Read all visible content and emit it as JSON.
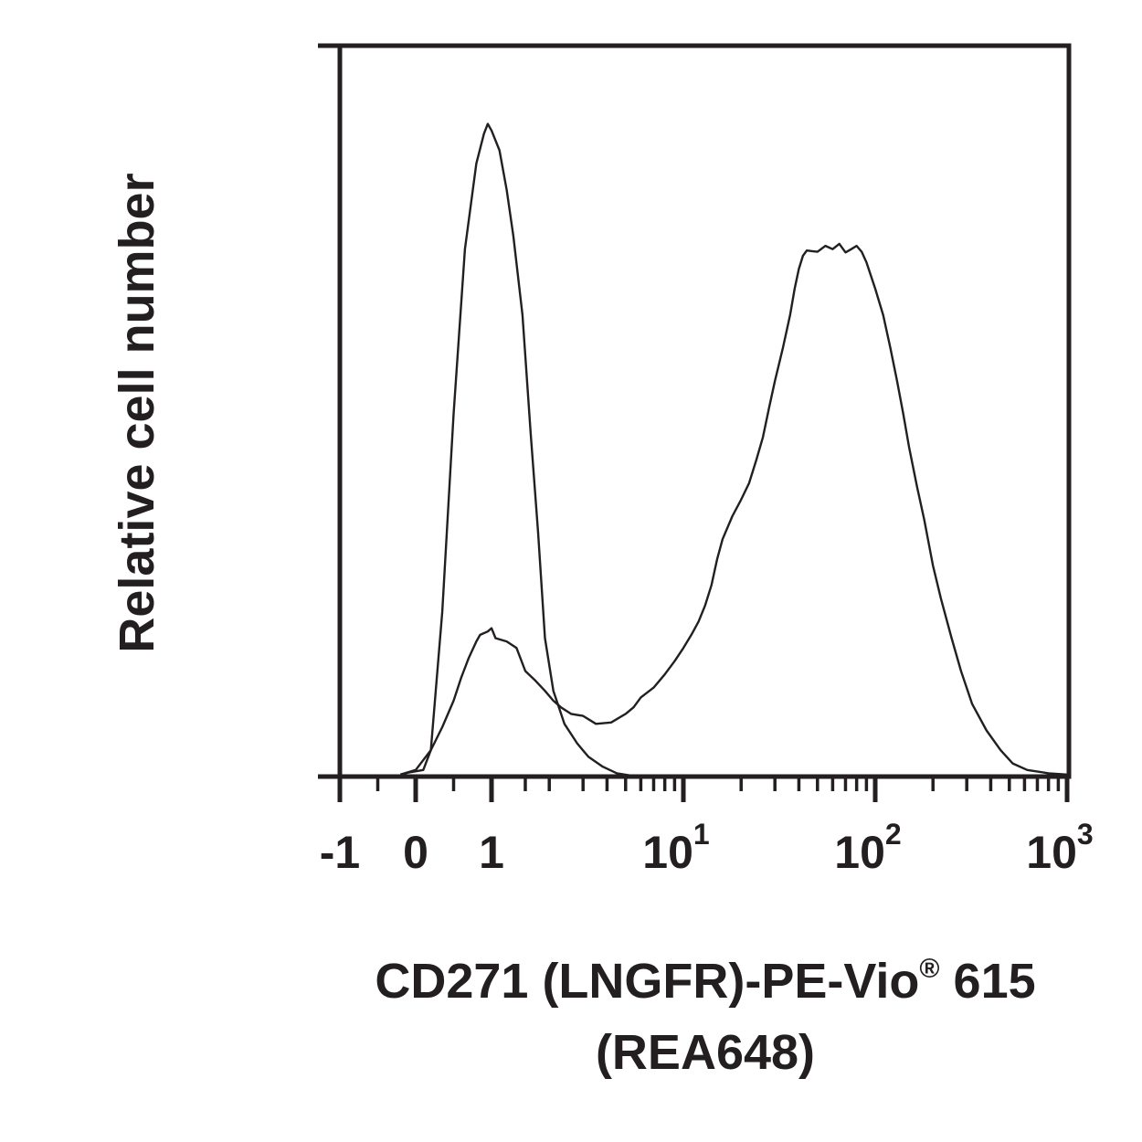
{
  "chart_data": {
    "type": "line",
    "xlabel_line1": "CD271 (LNGFR)-PE-Vio",
    "xlabel_reg": "®",
    "xlabel_line1_end": " 615",
    "xlabel_line2": "(REA648)",
    "ylabel": "Relative cell number",
    "x_scale": "biexponential",
    "xlim": [
      -1,
      1000
    ],
    "ylim": [
      0,
      100
    ],
    "grid": false,
    "x_ticks": [
      {
        "value": -1,
        "base": "-1",
        "exp": ""
      },
      {
        "value": 0,
        "base": "0",
        "exp": ""
      },
      {
        "value": 1,
        "base": "1",
        "exp": ""
      },
      {
        "value": 10,
        "base": "10",
        "exp": "1"
      },
      {
        "value": 100,
        "base": "10",
        "exp": "2"
      },
      {
        "value": 1000,
        "base": "10",
        "exp": "3"
      }
    ],
    "series": [
      {
        "points": [
          [
            -0.2,
            0.3
          ],
          [
            -0.1,
            0.6
          ],
          [
            0.1,
            1.0
          ],
          [
            0.2,
            4.0
          ],
          [
            0.35,
            25
          ],
          [
            0.5,
            55
          ],
          [
            0.65,
            80
          ],
          [
            0.8,
            93
          ],
          [
            0.9,
            97.5
          ],
          [
            0.95,
            99
          ],
          [
            1.0,
            98
          ],
          [
            1.1,
            95
          ],
          [
            1.2,
            89
          ],
          [
            1.3,
            82
          ],
          [
            1.45,
            70
          ],
          [
            1.6,
            52
          ],
          [
            1.75,
            37
          ],
          [
            1.9,
            21
          ],
          [
            2.1,
            13
          ],
          [
            2.4,
            8
          ],
          [
            2.8,
            5
          ],
          [
            3.2,
            3
          ],
          [
            3.8,
            1.5
          ],
          [
            4.5,
            0.5
          ],
          [
            5.2,
            0.2
          ]
        ]
      },
      {
        "points": [
          [
            -0.2,
            0.3
          ],
          [
            0.0,
            1.0
          ],
          [
            0.2,
            4.0
          ],
          [
            0.35,
            7.5
          ],
          [
            0.5,
            11.5
          ],
          [
            0.6,
            15
          ],
          [
            0.7,
            18
          ],
          [
            0.8,
            20.5
          ],
          [
            0.85,
            21.5
          ],
          [
            0.95,
            22
          ],
          [
            1.0,
            22.5
          ],
          [
            1.05,
            21
          ],
          [
            1.2,
            20.5
          ],
          [
            1.35,
            19.5
          ],
          [
            1.5,
            16
          ],
          [
            1.7,
            14.5
          ],
          [
            1.9,
            13
          ],
          [
            2.1,
            11.5
          ],
          [
            2.3,
            10.5
          ],
          [
            2.6,
            9.5
          ],
          [
            3.0,
            9.2
          ],
          [
            3.5,
            8.0
          ],
          [
            4.2,
            8.2
          ],
          [
            5.0,
            9.5
          ],
          [
            5.5,
            10.5
          ],
          [
            6.0,
            12
          ],
          [
            7.0,
            13.5
          ],
          [
            8.0,
            15.5
          ],
          [
            9.0,
            17.5
          ],
          [
            10,
            19.5
          ],
          [
            11,
            21.5
          ],
          [
            12,
            23.5
          ],
          [
            13,
            26
          ],
          [
            14,
            29
          ],
          [
            15,
            33
          ],
          [
            16,
            36
          ],
          [
            18,
            39.5
          ],
          [
            20,
            42
          ],
          [
            22,
            44.5
          ],
          [
            24,
            48
          ],
          [
            26,
            51.5
          ],
          [
            28,
            56
          ],
          [
            30,
            60
          ],
          [
            33,
            65
          ],
          [
            36,
            70
          ],
          [
            38,
            74
          ],
          [
            40,
            77
          ],
          [
            42,
            79
          ],
          [
            44,
            79.8
          ],
          [
            50,
            79.6
          ],
          [
            55,
            80.5
          ],
          [
            60,
            80
          ],
          [
            65,
            80.8
          ],
          [
            70,
            79.5
          ],
          [
            75,
            80
          ],
          [
            80,
            80.5
          ],
          [
            85,
            79.6
          ],
          [
            90,
            78
          ],
          [
            100,
            74
          ],
          [
            110,
            70
          ],
          [
            120,
            65
          ],
          [
            130,
            60
          ],
          [
            140,
            55
          ],
          [
            150,
            50
          ],
          [
            165,
            44
          ],
          [
            180,
            39
          ],
          [
            200,
            32
          ],
          [
            220,
            27
          ],
          [
            250,
            21
          ],
          [
            280,
            16
          ],
          [
            320,
            11
          ],
          [
            380,
            7
          ],
          [
            450,
            4
          ],
          [
            520,
            2
          ],
          [
            620,
            1
          ],
          [
            800,
            0.5
          ],
          [
            1000,
            0.3
          ]
        ]
      }
    ]
  }
}
